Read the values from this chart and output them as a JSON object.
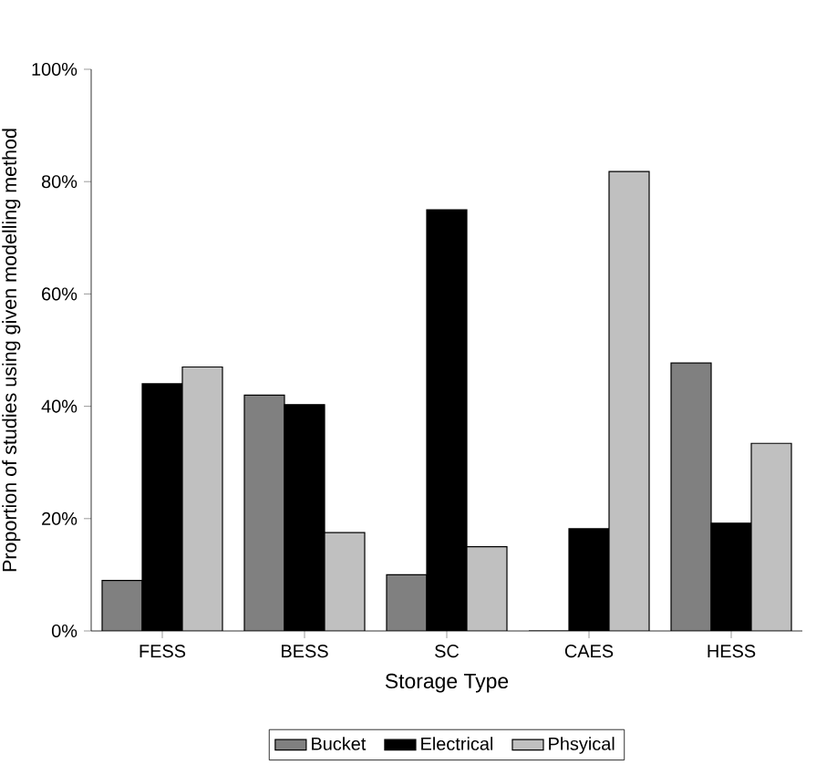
{
  "chart_data": {
    "type": "bar",
    "xlabel": "Storage Type",
    "ylabel": "Proportion of studies using given modelling method",
    "categories": [
      "FESS",
      "BESS",
      "SC",
      "CAES",
      "HESS"
    ],
    "series": [
      {
        "name": "Bucket",
        "color": "#808080",
        "values": [
          9,
          42,
          10,
          0,
          47.7
        ]
      },
      {
        "name": "Electrical",
        "color": "#000000",
        "values": [
          44,
          40.3,
          75,
          18.2,
          19.2
        ]
      },
      {
        "name": "Phsyical",
        "color": "#c0c0c0",
        "values": [
          47,
          17.5,
          15,
          81.8,
          33.4
        ]
      }
    ],
    "ylim": [
      0,
      100
    ],
    "yticks": [
      {
        "value": 0,
        "label": "0%"
      },
      {
        "value": 20,
        "label": "20%"
      },
      {
        "value": 40,
        "label": "40%"
      },
      {
        "value": 60,
        "label": "60%"
      },
      {
        "value": 80,
        "label": "80%"
      },
      {
        "value": 100,
        "label": "100%"
      }
    ],
    "grid": false,
    "legend": "bottom"
  }
}
